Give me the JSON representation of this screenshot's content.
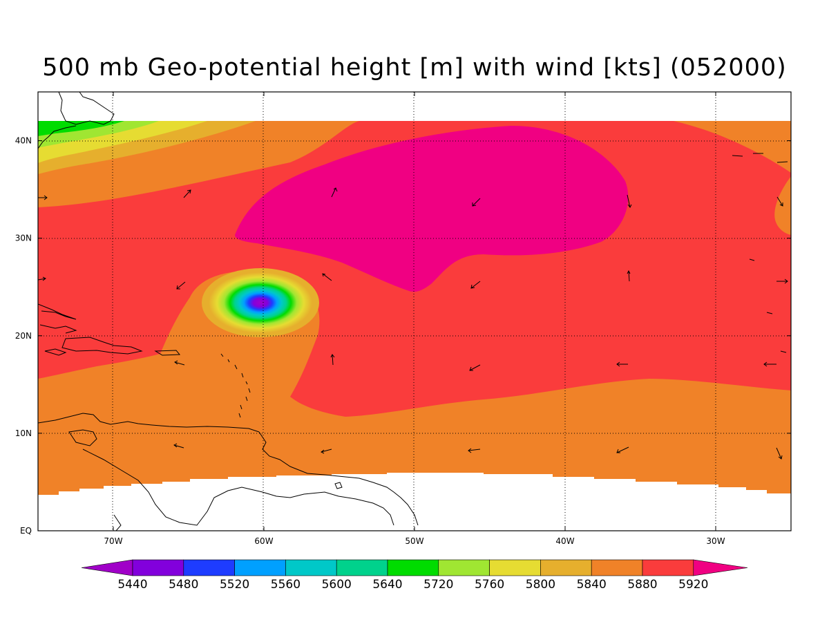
{
  "title": "500 mb Geo-potential height [m] with wind [kts] (052000)",
  "map": {
    "lon_range": [
      -75,
      -25
    ],
    "lat_range": [
      0,
      45
    ],
    "lon_ticks": [
      {
        "value": -70,
        "label": "70W"
      },
      {
        "value": -60,
        "label": "60W"
      },
      {
        "value": -50,
        "label": "50W"
      },
      {
        "value": -40,
        "label": "40W"
      },
      {
        "value": -30,
        "label": "30W"
      }
    ],
    "lat_ticks": [
      {
        "value": 0,
        "label": "EQ"
      },
      {
        "value": 10,
        "label": "10N"
      },
      {
        "value": 20,
        "label": "20N"
      },
      {
        "value": 30,
        "label": "30N"
      },
      {
        "value": 40,
        "label": "40N"
      }
    ],
    "gridlines": "dotted",
    "feature": "closed low centered near 23N 60W"
  },
  "colorbar": {
    "levels": [
      "5440",
      "5480",
      "5520",
      "5560",
      "5600",
      "5640",
      "5720",
      "5760",
      "5800",
      "5840",
      "5880",
      "5920"
    ],
    "colors": [
      "#a000c8",
      "#8200dc",
      "#1e3cff",
      "#00a0ff",
      "#00c8c8",
      "#00d28c",
      "#00dc00",
      "#a0e632",
      "#e6dc32",
      "#e6af2d",
      "#f08228",
      "#fa3c3c",
      "#f00082"
    ]
  }
}
